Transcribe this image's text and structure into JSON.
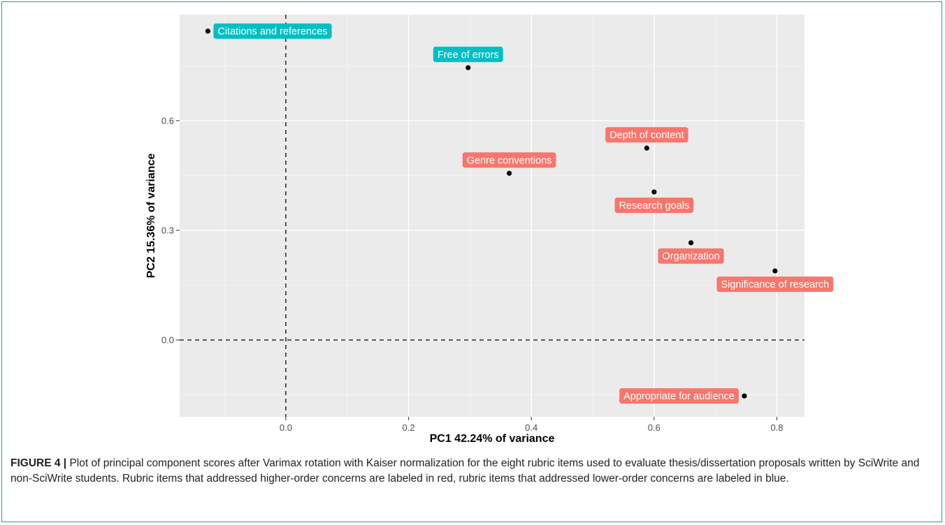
{
  "chart_data": {
    "type": "scatter",
    "title": "",
    "xlabel": "PC1 42.24% of variance",
    "ylabel": "PC2 15.36% of variance",
    "xlim": [
      -0.173,
      0.845
    ],
    "ylim": [
      -0.21,
      0.89
    ],
    "x_ticks": [
      0.0,
      0.2,
      0.4,
      0.6,
      0.8
    ],
    "x_tick_labels": [
      "0.0",
      "0.2",
      "0.4",
      "0.6",
      "0.8"
    ],
    "y_ticks": [
      0.0,
      0.3,
      0.6
    ],
    "y_tick_labels": [
      "0.0",
      "0.3",
      "0.6"
    ],
    "grid": true,
    "reference_lines": {
      "x": 0,
      "y": 0,
      "style": "dashed"
    },
    "label_colors": {
      "higher-order": "#f8766d",
      "lower-order": "#00bfc4"
    },
    "points": [
      {
        "label": "Citations and references",
        "x": -0.127,
        "y": 0.845,
        "group": "lower-order",
        "label_pos": "right"
      },
      {
        "label": "Free of errors",
        "x": 0.297,
        "y": 0.745,
        "group": "lower-order",
        "label_pos": "above"
      },
      {
        "label": "Depth of content",
        "x": 0.588,
        "y": 0.525,
        "group": "higher-order",
        "label_pos": "above"
      },
      {
        "label": "Genre conventions",
        "x": 0.364,
        "y": 0.456,
        "group": "higher-order",
        "label_pos": "above"
      },
      {
        "label": "Research goals",
        "x": 0.6,
        "y": 0.405,
        "group": "higher-order",
        "label_pos": "below"
      },
      {
        "label": "Organization",
        "x": 0.66,
        "y": 0.266,
        "group": "higher-order",
        "label_pos": "below"
      },
      {
        "label": "Significance of research",
        "x": 0.797,
        "y": 0.189,
        "group": "higher-order",
        "label_pos": "below"
      },
      {
        "label": "Appropriate for audience",
        "x": 0.747,
        "y": -0.153,
        "group": "higher-order",
        "label_pos": "left"
      }
    ]
  },
  "caption": {
    "lead": "FIGURE 4 |",
    "text": " Plot of principal component scores after Varimax rotation with Kaiser normalization for the eight rubric items used to evaluate thesis/dissertation proposals written by SciWrite and non-SciWrite students. Rubric items that addressed higher-order concerns are labeled in red, rubric items that addressed lower-order concerns are labeled in blue."
  }
}
